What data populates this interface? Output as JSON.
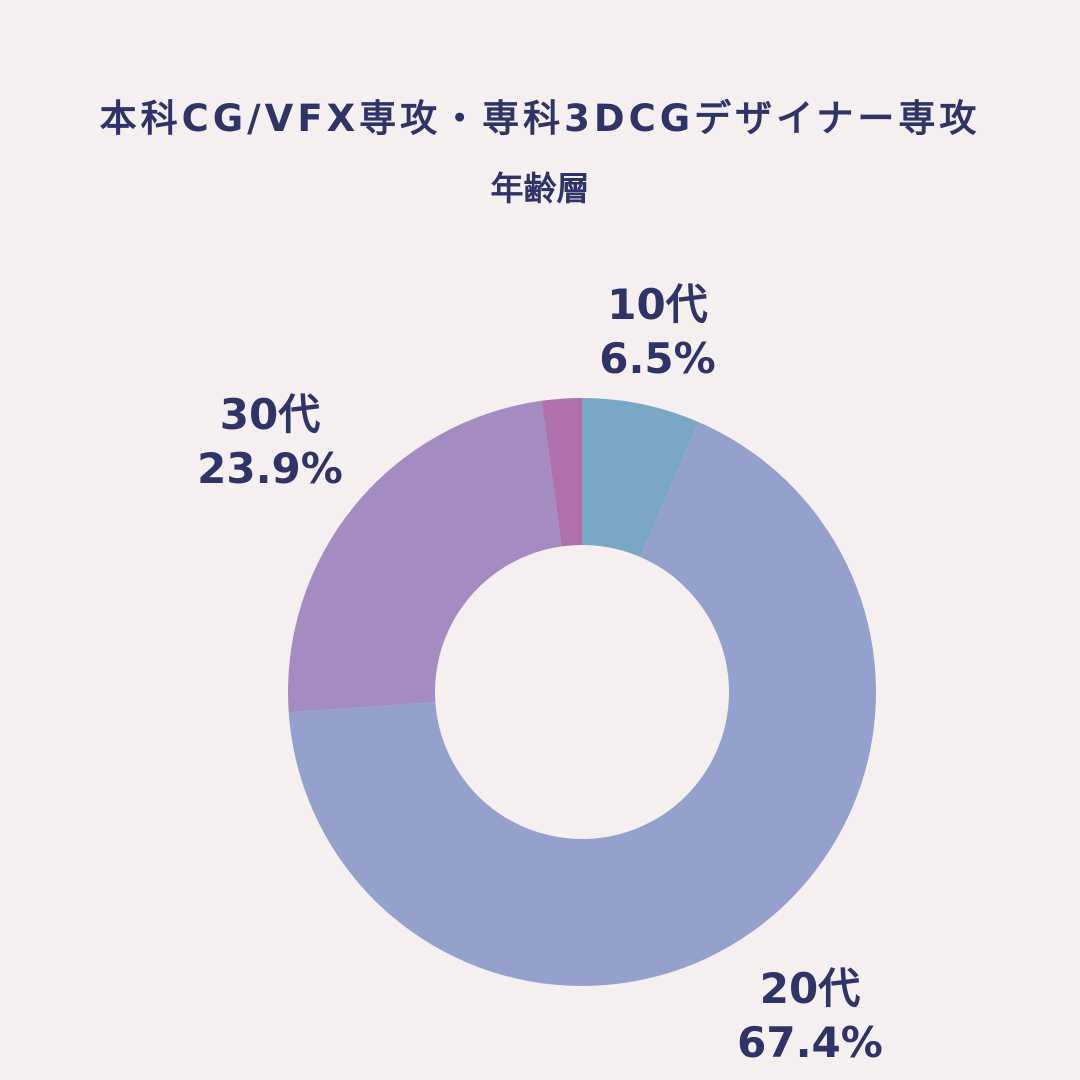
{
  "title": "本科CG/VFX専攻・専科3DCGデザイナー専攻",
  "subtitle": "年齢層",
  "colors": {
    "background": "#f5efef",
    "text": "#2f3368"
  },
  "chart_data": {
    "type": "pie",
    "variant": "donut",
    "title": "本科CG/VFX専攻・専科3DCGデザイナー専攻",
    "subtitle": "年齢層",
    "start": "top",
    "direction": "clockwise",
    "slices": [
      {
        "label": "10代",
        "value": 6.5,
        "display": "6.5%",
        "color": "#7ba7c7"
      },
      {
        "label": "20代",
        "value": 67.4,
        "display": "67.4%",
        "color": "#94a1cc"
      },
      {
        "label": "30代",
        "value": 23.9,
        "display": "23.9%",
        "color": "#a48cc3"
      },
      {
        "label": "",
        "value": 2.2,
        "display": "",
        "color": "#b070ad"
      }
    ]
  }
}
